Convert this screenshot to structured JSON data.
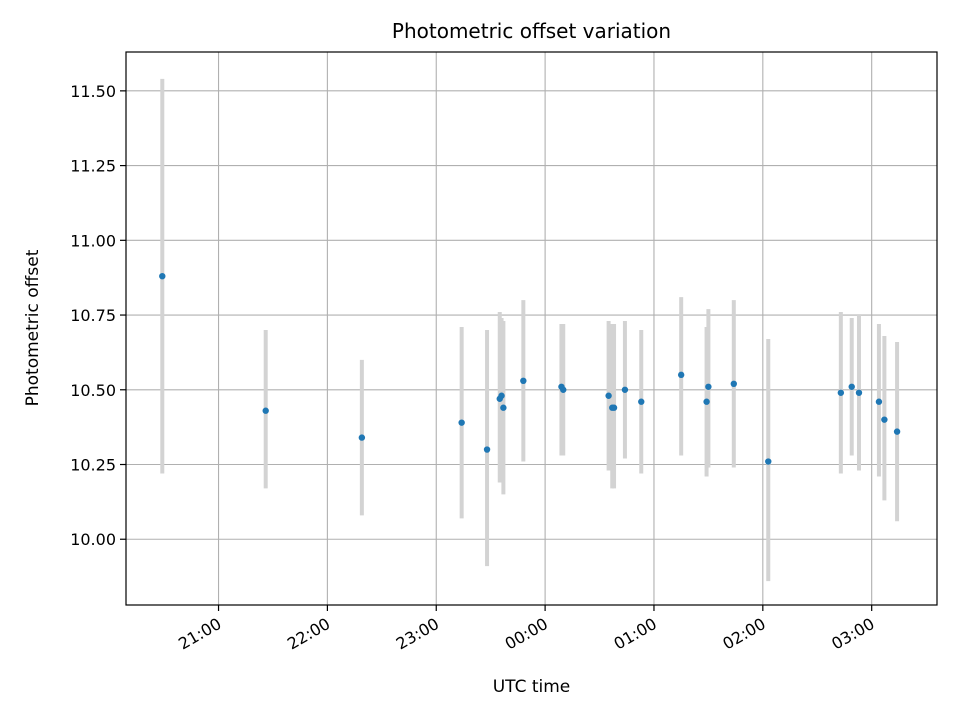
{
  "chart_data": {
    "type": "scatter",
    "title": "Photometric offset variation",
    "xlabel": "UTC time",
    "ylabel": "Photometric offset",
    "x_is_time": true,
    "xlim": [
      "20:09",
      "03:36"
    ],
    "ylim": [
      9.78,
      11.63
    ],
    "x_ticks": [
      "21:00",
      "22:00",
      "23:00",
      "00:00",
      "01:00",
      "02:00",
      "03:00"
    ],
    "y_ticks": [
      "10.00",
      "10.25",
      "10.50",
      "10.75",
      "11.00",
      "11.25",
      "11.50"
    ],
    "grid": true,
    "colors": {
      "point": "#1f77b4",
      "errorbar": "#d3d3d3",
      "grid": "#b0b0b0"
    },
    "points": [
      {
        "t": "20:29",
        "y": 10.88,
        "lo": 10.22,
        "hi": 11.54
      },
      {
        "t": "21:26",
        "y": 10.43,
        "lo": 10.17,
        "hi": 10.7
      },
      {
        "t": "22:19",
        "y": 10.34,
        "lo": 10.08,
        "hi": 10.6
      },
      {
        "t": "23:14",
        "y": 10.39,
        "lo": 10.07,
        "hi": 10.71
      },
      {
        "t": "23:28",
        "y": 10.3,
        "lo": 9.91,
        "hi": 10.7
      },
      {
        "t": "23:35",
        "y": 10.47,
        "lo": 10.19,
        "hi": 10.76
      },
      {
        "t": "23:36",
        "y": 10.48,
        "lo": 10.22,
        "hi": 10.74
      },
      {
        "t": "23:37",
        "y": 10.44,
        "lo": 10.15,
        "hi": 10.73
      },
      {
        "t": "23:48",
        "y": 10.53,
        "lo": 10.26,
        "hi": 10.8
      },
      {
        "t": "00:09",
        "y": 10.51,
        "lo": 10.28,
        "hi": 10.72
      },
      {
        "t": "00:10",
        "y": 10.5,
        "lo": 10.28,
        "hi": 10.72
      },
      {
        "t": "00:35",
        "y": 10.48,
        "lo": 10.23,
        "hi": 10.73
      },
      {
        "t": "00:37",
        "y": 10.44,
        "lo": 10.17,
        "hi": 10.72
      },
      {
        "t": "00:38",
        "y": 10.44,
        "lo": 10.17,
        "hi": 10.72
      },
      {
        "t": "00:44",
        "y": 10.5,
        "lo": 10.27,
        "hi": 10.73
      },
      {
        "t": "00:53",
        "y": 10.46,
        "lo": 10.22,
        "hi": 10.7
      },
      {
        "t": "01:15",
        "y": 10.55,
        "lo": 10.28,
        "hi": 10.81
      },
      {
        "t": "01:29",
        "y": 10.46,
        "lo": 10.21,
        "hi": 10.71
      },
      {
        "t": "01:30",
        "y": 10.51,
        "lo": 10.24,
        "hi": 10.77
      },
      {
        "t": "01:44",
        "y": 10.52,
        "lo": 10.24,
        "hi": 10.8
      },
      {
        "t": "02:03",
        "y": 10.26,
        "lo": 9.86,
        "hi": 10.67
      },
      {
        "t": "02:43",
        "y": 10.49,
        "lo": 10.22,
        "hi": 10.76
      },
      {
        "t": "02:49",
        "y": 10.51,
        "lo": 10.28,
        "hi": 10.74
      },
      {
        "t": "02:53",
        "y": 10.49,
        "lo": 10.23,
        "hi": 10.75
      },
      {
        "t": "03:04",
        "y": 10.46,
        "lo": 10.21,
        "hi": 10.72
      },
      {
        "t": "03:07",
        "y": 10.4,
        "lo": 10.13,
        "hi": 10.68
      },
      {
        "t": "03:14",
        "y": 10.36,
        "lo": 10.06,
        "hi": 10.66
      }
    ]
  }
}
